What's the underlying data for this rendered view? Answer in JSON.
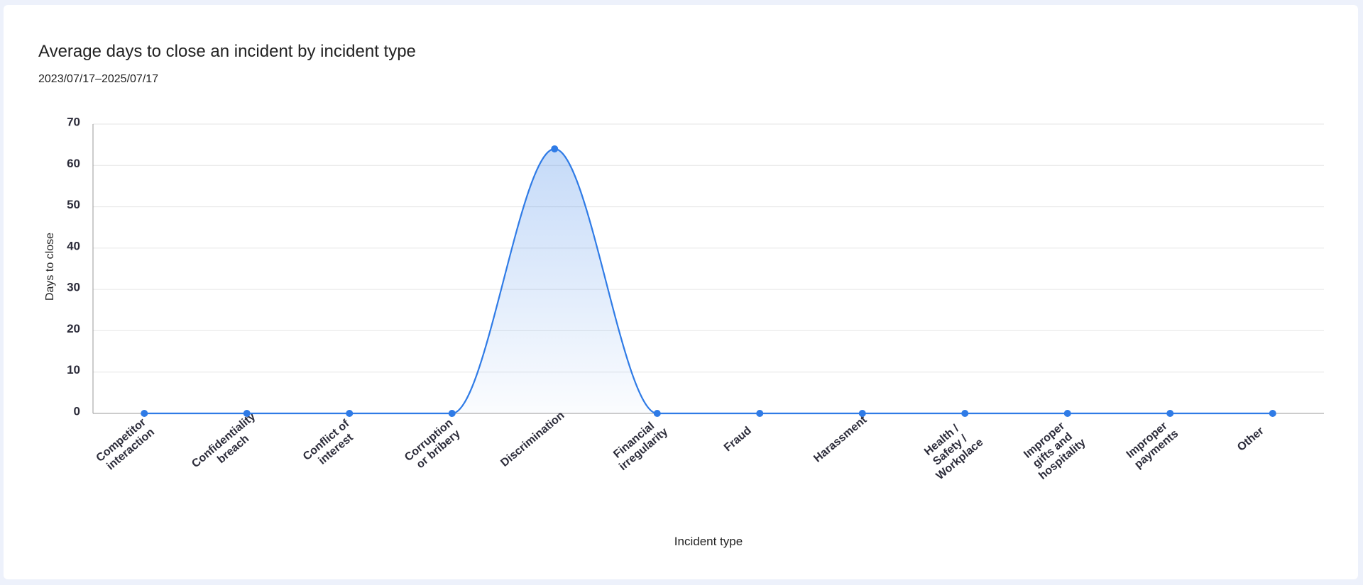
{
  "chart_data": {
    "type": "line",
    "title": "Average days to close an incident by incident type",
    "subtitle": "2023/07/17–2025/07/17",
    "x_label": "Incident type",
    "y_label": "Days to close",
    "categories": [
      "Competitor interaction",
      "Confidentiality breach",
      "Conflict of interest",
      "Corruption or bribery",
      "Discrimination",
      "Financial irregularity",
      "Fraud",
      "Harassment",
      "Health / Safety / Workplace",
      "Improper gifts and hospitality",
      "Improper payments",
      "Other"
    ],
    "values": [
      0,
      0,
      0,
      0,
      64,
      0,
      0,
      0,
      0,
      0,
      0,
      0
    ],
    "color": "#2f7be6",
    "area": true,
    "ylim": [
      0,
      70
    ],
    "yticks": [
      0,
      10,
      20,
      30,
      40,
      50,
      60,
      70
    ],
    "grid": true
  }
}
